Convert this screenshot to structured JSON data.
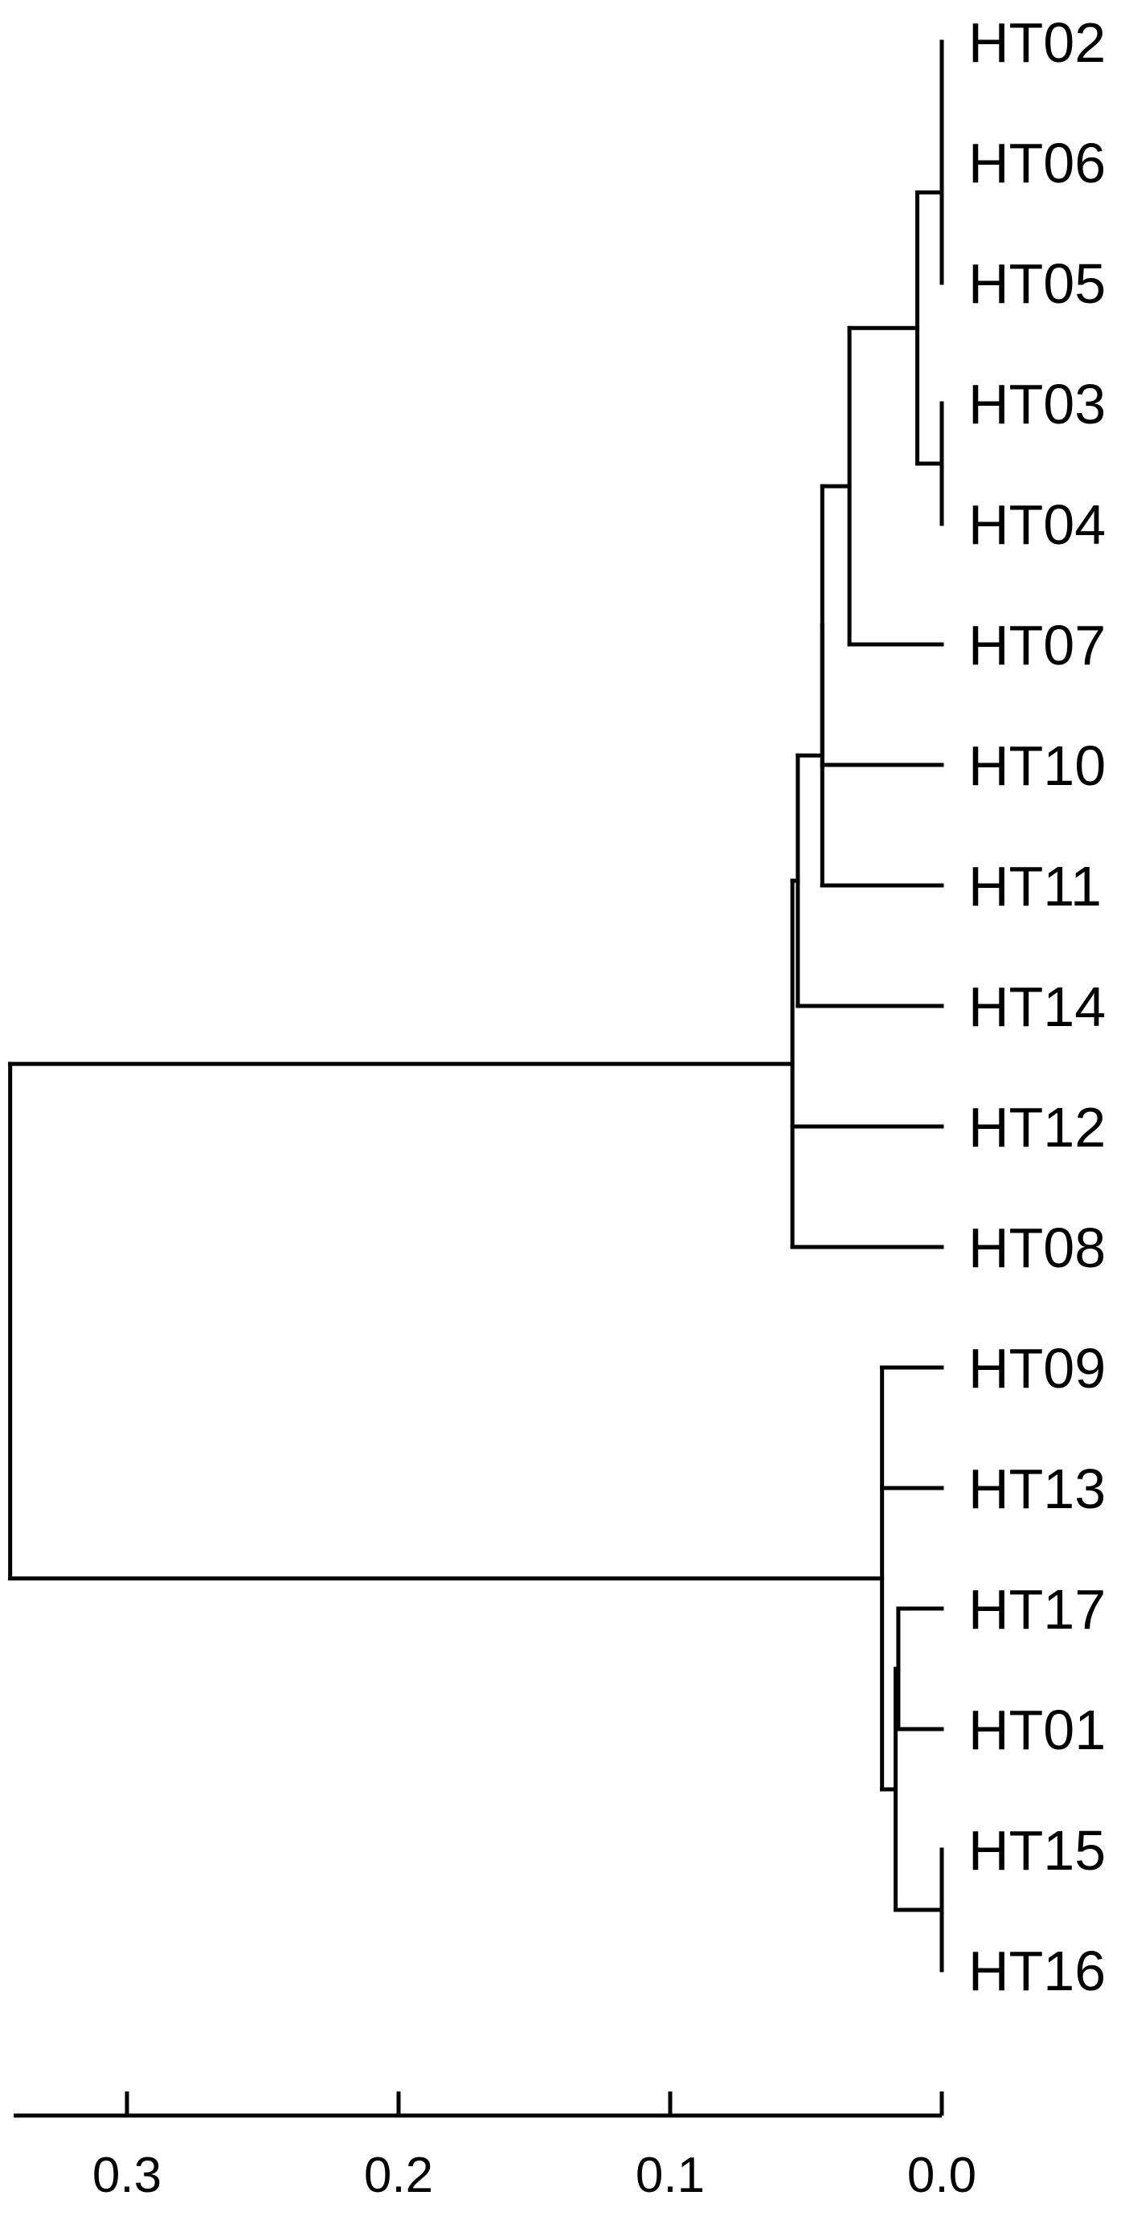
{
  "chart_data": {
    "type": "dendrogram",
    "orientation": "leaves-right",
    "axis": {
      "ticks": [
        0.3,
        0.2,
        0.1,
        0.0
      ],
      "tick_labels": [
        "0.3",
        "0.2",
        "0.1",
        "0.0"
      ],
      "range": [
        0.343,
        0.0
      ]
    },
    "leaves": [
      "HT02",
      "HT06",
      "HT05",
      "HT03",
      "HT04",
      "HT07",
      "HT10",
      "HT11",
      "HT14",
      "HT12",
      "HT08",
      "HT09",
      "HT13",
      "HT17",
      "HT01",
      "HT15",
      "HT16"
    ],
    "merges": [
      {
        "children": [
          "HT02",
          "HT06"
        ],
        "height": 0.0
      },
      {
        "children": [
          [
            "HT02",
            "HT06"
          ],
          "HT05"
        ],
        "height": 0.0
      },
      {
        "children": [
          "HT03",
          "HT04"
        ],
        "height": 0.0
      },
      {
        "children": [
          [
            "HT02",
            "HT06",
            "HT05"
          ],
          [
            "HT03",
            "HT04"
          ]
        ],
        "height": 0.009
      },
      {
        "children": [
          [
            "HT02",
            "HT06",
            "HT05",
            "HT03",
            "HT04"
          ],
          "HT07"
        ],
        "height": 0.034
      },
      {
        "children": [
          [
            "HT02",
            "HT06",
            "HT05",
            "HT03",
            "HT04",
            "HT07"
          ],
          "HT10"
        ],
        "height": 0.044
      },
      {
        "children": [
          [
            "HT02",
            "HT06",
            "HT05",
            "HT03",
            "HT04",
            "HT07",
            "HT10"
          ],
          "HT11"
        ],
        "height": 0.044
      },
      {
        "children": [
          [
            "HT02",
            "HT06",
            "HT05",
            "HT03",
            "HT04",
            "HT07",
            "HT10",
            "HT11"
          ],
          "HT14"
        ],
        "height": 0.053
      },
      {
        "children": [
          [
            "HT02",
            "HT06",
            "HT05",
            "HT03",
            "HT04",
            "HT07",
            "HT10",
            "HT11",
            "HT14"
          ],
          "HT12",
          "HT08"
        ],
        "height": 0.055
      },
      {
        "children": [
          "HT15",
          "HT16"
        ],
        "height": 0.0
      },
      {
        "children": [
          "HT17",
          "HT01"
        ],
        "height": 0.016
      },
      {
        "children": [
          [
            "HT17",
            "HT01"
          ],
          [
            "HT15",
            "HT16"
          ]
        ],
        "height": 0.017
      },
      {
        "children": [
          "HT09",
          "HT13",
          [
            "HT17",
            "HT01",
            "HT15",
            "HT16"
          ]
        ],
        "height": 0.022
      },
      {
        "children": [
          [
            "HT02",
            "HT06",
            "HT05",
            "HT03",
            "HT04",
            "HT07",
            "HT10",
            "HT11",
            "HT14",
            "HT12",
            "HT08"
          ],
          [
            "HT09",
            "HT13",
            "HT17",
            "HT01",
            "HT15",
            "HT16"
          ]
        ],
        "height": 0.343
      }
    ]
  }
}
